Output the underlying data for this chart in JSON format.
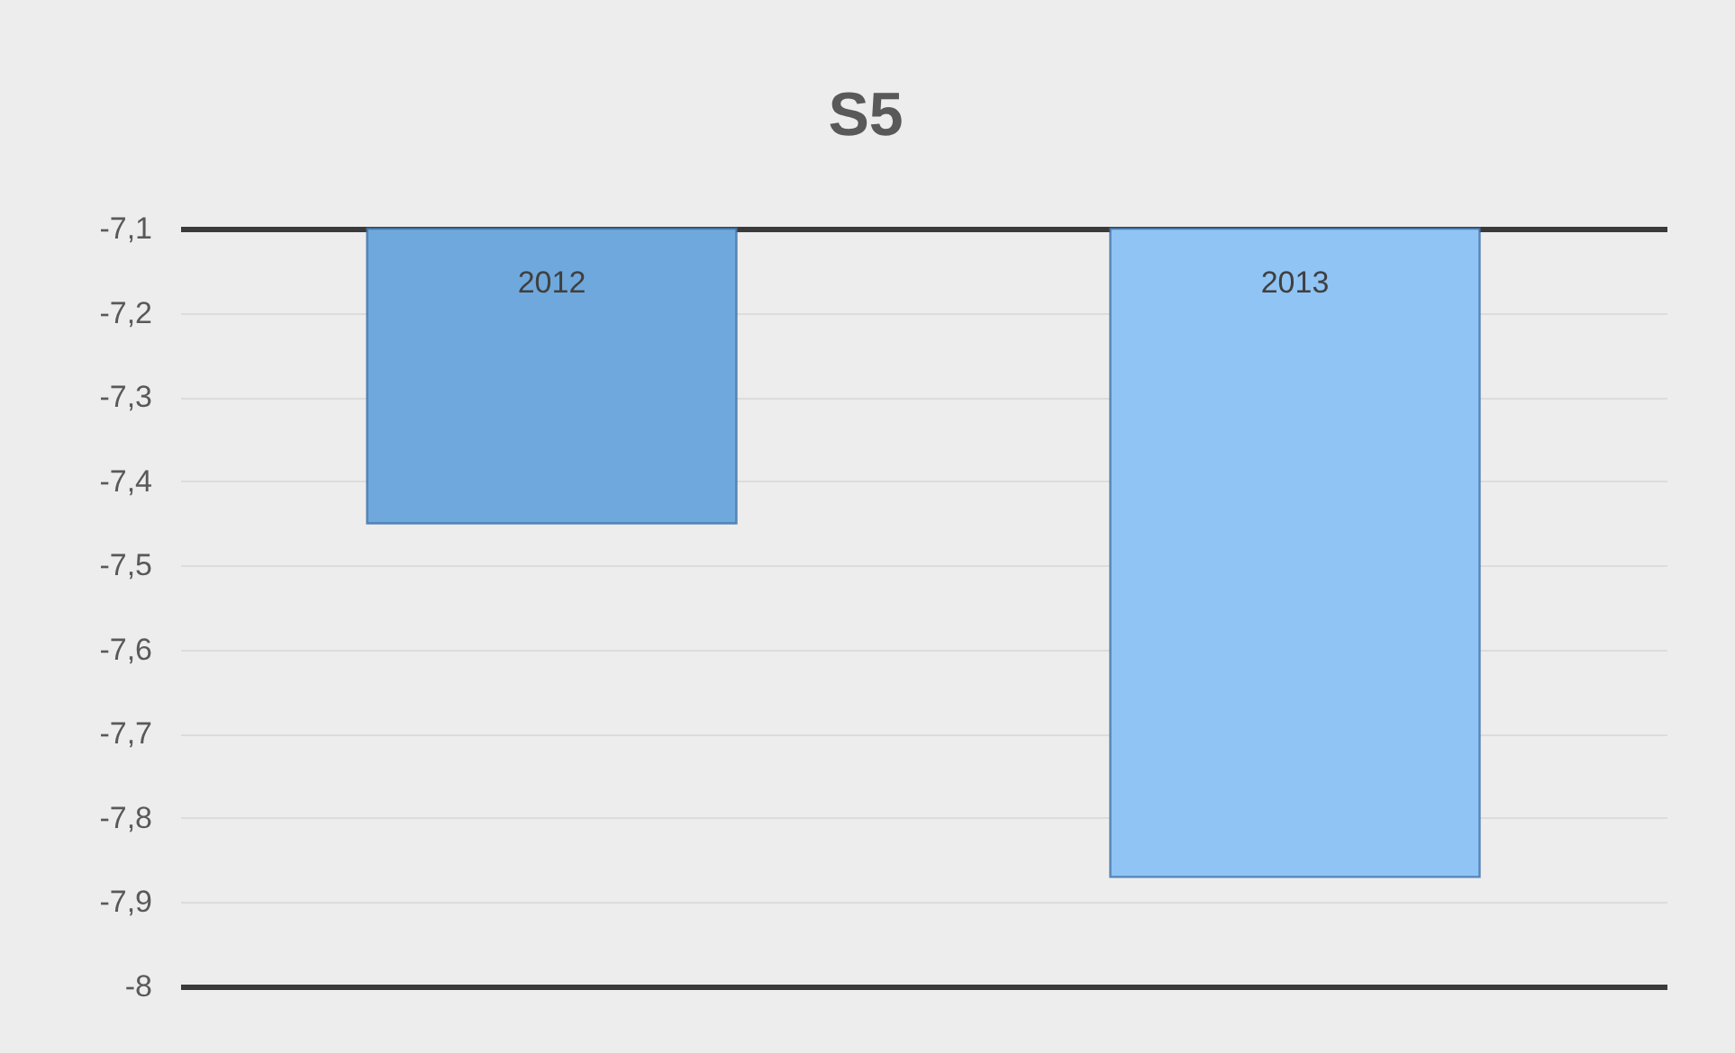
{
  "chart_data": {
    "type": "bar",
    "title": "S5",
    "categories": [
      "2012",
      "2013"
    ],
    "values": [
      -7.45,
      -7.87
    ],
    "colors": [
      "#6fa8dc",
      "#90c4f4"
    ],
    "ylim": [
      -8,
      -7.1
    ],
    "yticks": [
      -8,
      {
        "value": -7.9,
        "label": "-7,9"
      },
      {
        "value": -7.8,
        "label": "-7,8"
      },
      {
        "value": -7.7,
        "label": "-7,7"
      },
      {
        "value": -7.6,
        "label": "-7,6"
      },
      {
        "value": -7.5,
        "label": "-7,5"
      },
      {
        "value": -7.4,
        "label": "-7,4"
      },
      {
        "value": -7.3,
        "label": "-7,3"
      },
      {
        "value": -7.2,
        "label": "-7,2"
      },
      {
        "value": -7.1,
        "label": "-7,1"
      }
    ],
    "grid": true
  }
}
